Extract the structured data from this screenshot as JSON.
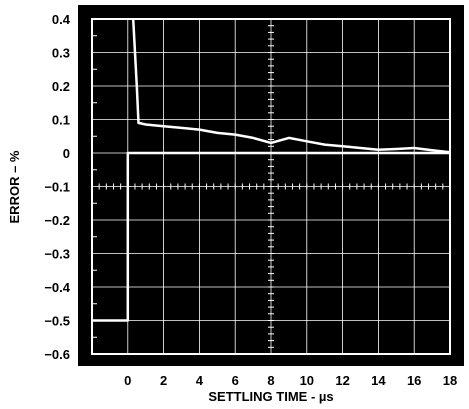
{
  "chart_data": {
    "type": "line",
    "xlabel": "SETTLING TIME - µs",
    "ylabel": "ERROR – %",
    "xlim": [
      -2,
      18
    ],
    "ylim": [
      -0.6,
      0.4
    ],
    "x_ticks": [
      0,
      2,
      4,
      6,
      8,
      10,
      12,
      14,
      16,
      18
    ],
    "x_tick_labels": [
      "0",
      "2",
      "4",
      "6",
      "8",
      "10",
      "12",
      "14",
      "16",
      "18"
    ],
    "y_ticks": [
      0.4,
      0.3,
      0.2,
      0.1,
      0,
      -0.1,
      -0.2,
      -0.3,
      -0.4,
      -0.5,
      -0.6
    ],
    "y_tick_labels": [
      "0.4",
      "0.3",
      "0.2",
      "0.1",
      "0",
      "−0.1",
      "−0.2",
      "−0.3",
      "−0.4",
      "−0.5",
      "−0.6"
    ],
    "grid": true,
    "background": "#000000",
    "foreground": "#ffffff",
    "series": [
      {
        "x": [
          -2,
          0,
          0,
          0.3,
          18
        ],
        "y": [
          -0.5,
          -0.5,
          0,
          0,
          0
        ]
      },
      {
        "x": [
          0.3,
          0.5,
          0.6,
          1,
          2,
          3,
          4,
          5,
          6,
          7,
          8,
          9,
          10,
          11,
          12,
          13,
          14,
          15,
          16,
          17,
          18
        ],
        "y": [
          0.4,
          0.2,
          0.09,
          0.085,
          0.08,
          0.075,
          0.07,
          0.06,
          0.055,
          0.045,
          0.03,
          0.045,
          0.035,
          0.025,
          0.02,
          0.015,
          0.01,
          0.012,
          0.015,
          0.008,
          0.002
        ]
      }
    ]
  }
}
